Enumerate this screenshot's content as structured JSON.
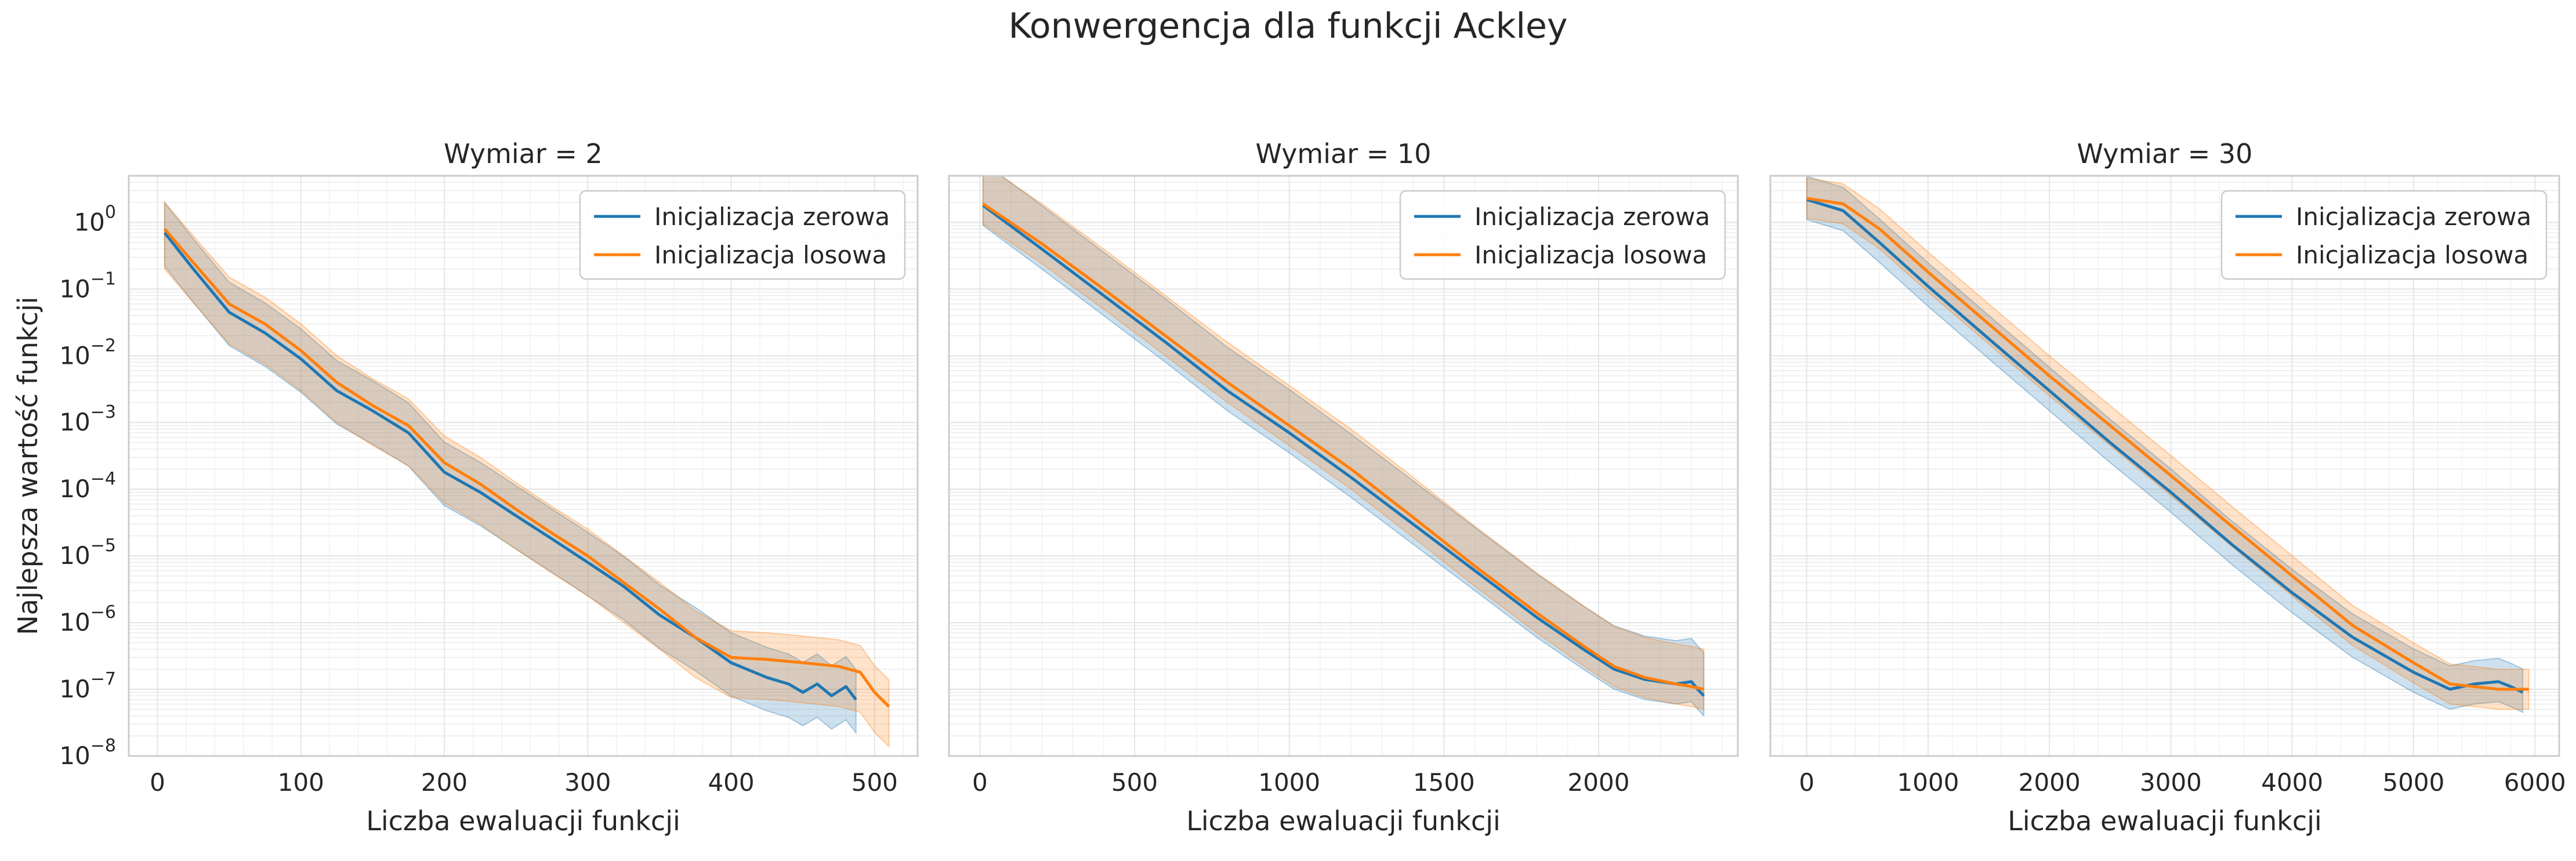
{
  "figure": {
    "title": "Konwergencja dla funkcji Ackley"
  },
  "colors": {
    "series_zero": "#1f77b4",
    "series_random": "#ff7f0e",
    "grid": "#ebebeb",
    "frame": "#cccccc"
  },
  "chart_data": [
    {
      "type": "line",
      "title": "Wymiar = 2",
      "xlabel": "Liczba ewaluacji funkcji",
      "ylabel": "Najlepsza wartość funkcji",
      "yscale": "log",
      "xlim": [
        -20,
        530
      ],
      "ylim": [
        1e-08,
        5
      ],
      "xticks": [
        0,
        100,
        200,
        300,
        400,
        500
      ],
      "yticks": [
        "10^0",
        "10^-1",
        "10^-2",
        "10^-3",
        "10^-4",
        "10^-5",
        "10^-6",
        "10^-7",
        "10^-8"
      ],
      "grid": true,
      "legend": "top-right",
      "series": [
        {
          "name": "Inicjalizacja zerowa",
          "x": [
            5,
            25,
            50,
            75,
            100,
            125,
            150,
            175,
            200,
            225,
            250,
            275,
            300,
            325,
            350,
            375,
            400,
            425,
            440,
            450,
            460,
            470,
            480,
            487
          ],
          "y": [
            0.7,
            0.2,
            0.045,
            0.022,
            0.009,
            0.003,
            0.0015,
            0.0007,
            0.00018,
            9e-05,
            4e-05,
            1.8e-05,
            8e-06,
            3.5e-06,
            1.3e-06,
            6e-07,
            2.5e-07,
            1.5e-07,
            1.2e-07,
            9e-08,
            1.2e-07,
            8e-08,
            1.1e-07,
            7e-08
          ],
          "band": [
            0.45,
            0.5
          ]
        },
        {
          "name": "Inicjalizacja losowa",
          "x": [
            5,
            25,
            50,
            75,
            100,
            125,
            150,
            175,
            200,
            225,
            250,
            275,
            300,
            325,
            350,
            375,
            400,
            425,
            450,
            475,
            490,
            500,
            510
          ],
          "y": [
            0.8,
            0.25,
            0.06,
            0.03,
            0.012,
            0.004,
            0.0018,
            0.0009,
            0.00025,
            0.00012,
            5e-05,
            2.2e-05,
            1e-05,
            4e-06,
            1.6e-06,
            6e-07,
            3e-07,
            2.8e-07,
            2.5e-07,
            2.2e-07,
            1.8e-07,
            9e-08,
            5.5e-08
          ],
          "band": [
            0.4,
            0.6
          ]
        }
      ]
    },
    {
      "type": "line",
      "title": "Wymiar = 10",
      "xlabel": "Liczba ewaluacji funkcji",
      "ylabel": "",
      "yscale": "log",
      "xlim": [
        -100,
        2450
      ],
      "ylim": [
        1e-08,
        5
      ],
      "xticks": [
        0,
        500,
        1000,
        1500,
        2000
      ],
      "grid": true,
      "legend": "top-right",
      "series": [
        {
          "name": "Inicjalizacja zerowa",
          "x": [
            10,
            200,
            400,
            600,
            800,
            1000,
            1200,
            1400,
            1600,
            1800,
            1950,
            2050,
            2150,
            2250,
            2300,
            2320,
            2340
          ],
          "y": [
            1.8,
            0.4,
            0.08,
            0.016,
            0.003,
            0.0007,
            0.00015,
            3e-05,
            6e-06,
            1.2e-06,
            4e-07,
            2e-07,
            1.4e-07,
            1.2e-07,
            1.3e-07,
            1e-07,
            8e-08
          ],
          "band": [
            0.65,
            0.3
          ]
        },
        {
          "name": "Inicjalizacja losowa",
          "x": [
            10,
            200,
            400,
            600,
            800,
            1000,
            1200,
            1400,
            1600,
            1800,
            1950,
            2050,
            2150,
            2250,
            2300,
            2340
          ],
          "y": [
            1.9,
            0.48,
            0.1,
            0.02,
            0.004,
            0.0009,
            0.0002,
            3.8e-05,
            7e-06,
            1.4e-06,
            4.5e-07,
            2.2e-07,
            1.5e-07,
            1.2e-07,
            1.1e-07,
            1e-07
          ],
          "band": [
            0.6,
            0.3
          ]
        }
      ]
    },
    {
      "type": "line",
      "title": "Wymiar = 30",
      "xlabel": "Liczba ewaluacji funkcji",
      "ylabel": "",
      "yscale": "log",
      "xlim": [
        -300,
        6200
      ],
      "ylim": [
        1e-08,
        5
      ],
      "xticks": [
        0,
        1000,
        2000,
        3000,
        4000,
        5000,
        6000
      ],
      "grid": true,
      "legend": "top-right",
      "series": [
        {
          "name": "Inicjalizacja zerowa",
          "x": [
            0,
            300,
            600,
            1000,
            1500,
            2000,
            2500,
            3000,
            3500,
            4000,
            4500,
            5000,
            5300,
            5500,
            5700,
            5800,
            5900
          ],
          "y": [
            2.2,
            1.5,
            0.5,
            0.11,
            0.018,
            0.003,
            0.0005,
            9e-05,
            1.5e-05,
            2.8e-06,
            6e-07,
            1.8e-07,
            1e-07,
            1.2e-07,
            1.3e-07,
            1.1e-07,
            9e-08
          ],
          "band": [
            0.35,
            0.3
          ]
        },
        {
          "name": "Inicjalizacja losowa",
          "x": [
            0,
            300,
            600,
            1000,
            1500,
            2000,
            2500,
            3000,
            3500,
            4000,
            4500,
            5000,
            5300,
            5500,
            5700,
            5800,
            5950
          ],
          "y": [
            2.3,
            1.9,
            0.8,
            0.18,
            0.03,
            0.005,
            0.0009,
            0.00016,
            2.8e-05,
            5e-06,
            9e-07,
            2.5e-07,
            1.2e-07,
            1.1e-07,
            1e-07,
            1e-07,
            1e-07
          ],
          "band": [
            0.3,
            0.3
          ]
        }
      ]
    }
  ]
}
